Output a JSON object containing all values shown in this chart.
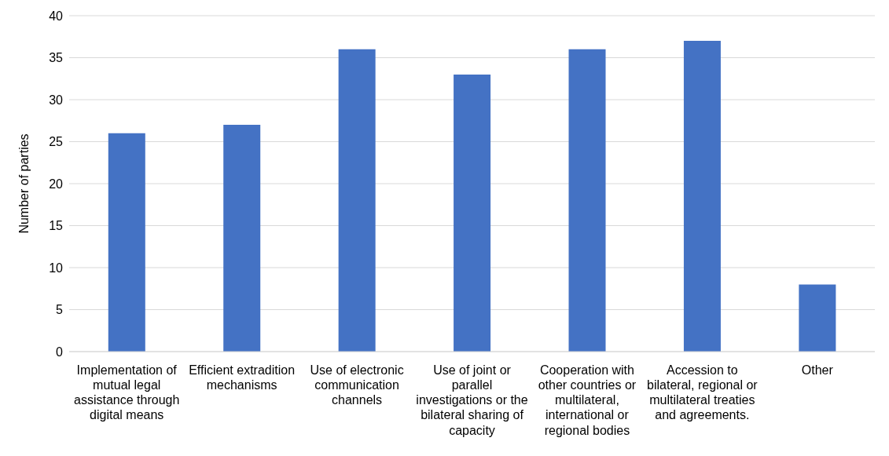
{
  "chart_data": {
    "type": "bar",
    "ylabel": "Number of parties",
    "categories": [
      "Implementation of mutual legal assistance through digital means",
      "Efficient extradition mechanisms",
      "Use of electronic communication channels",
      "Use of joint or parallel investigations or the bilateral sharing of capacity",
      "Cooperation with other countries or multilateral, international or regional bodies",
      "Accession to bilateral, regional or multilateral treaties and agreements.",
      "Other"
    ],
    "values": [
      26,
      27,
      36,
      33,
      36,
      37,
      8
    ],
    "color": "#4472c4",
    "ylim": [
      0,
      40
    ],
    "yticks": [
      0,
      5,
      10,
      15,
      20,
      25,
      30,
      35,
      40
    ],
    "grid": "y"
  }
}
